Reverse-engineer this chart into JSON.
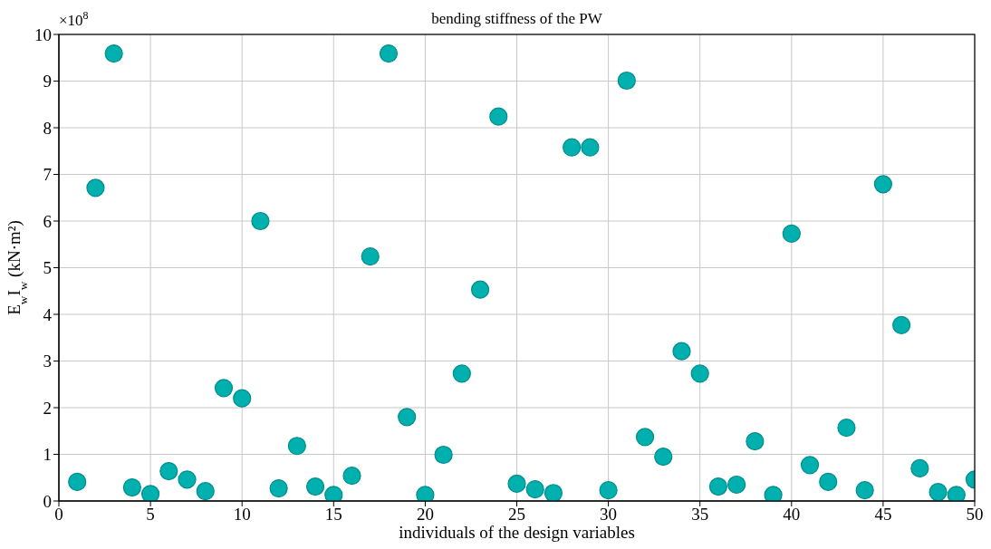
{
  "chart_data": {
    "type": "scatter",
    "title": "bending stiffness of the PW",
    "xlabel": "individuals of the design variables",
    "ylabel": "E$_{w}$I$_{w}$ (kN·m²)",
    "annotations": [
      "×10$^{8}$"
    ],
    "x": [
      1,
      2,
      3,
      4,
      5,
      6,
      7,
      8,
      9,
      10,
      11,
      12,
      13,
      14,
      15,
      16,
      17,
      18,
      19,
      20,
      21,
      22,
      23,
      24,
      25,
      26,
      27,
      28,
      29,
      30,
      31,
      32,
      33,
      34,
      35,
      36,
      37,
      38,
      39,
      40,
      41,
      42,
      43,
      44,
      45,
      46,
      47,
      48,
      49,
      50
    ],
    "series": [
      {
        "color": "#00b0ae",
        "values": [
          0.41,
          6.71,
          9.59,
          0.29,
          0.15,
          0.64,
          0.46,
          0.21,
          2.42,
          2.2,
          6.0,
          0.27,
          1.18,
          0.31,
          0.13,
          0.54,
          5.24,
          9.59,
          1.8,
          0.13,
          0.99,
          2.73,
          4.53,
          8.24,
          0.37,
          0.25,
          0.17,
          7.58,
          7.58,
          0.23,
          9.01,
          1.37,
          0.95,
          3.21,
          2.73,
          0.31,
          0.35,
          1.28,
          0.13,
          5.73,
          0.77,
          0.41,
          1.57,
          0.23,
          6.79,
          3.77,
          0.7,
          0.19,
          0.13,
          0.46
        ]
      }
    ],
    "xlim": [
      0,
      50
    ],
    "xticks": [
      0,
      5,
      10,
      15,
      20,
      25,
      30,
      35,
      40,
      45,
      50
    ],
    "ylim": [
      0,
      10
    ],
    "yticks": [
      0,
      1,
      2,
      3,
      4,
      5,
      6,
      7,
      8,
      9,
      10
    ],
    "grid": true,
    "marker": "circle",
    "legend": false
  }
}
